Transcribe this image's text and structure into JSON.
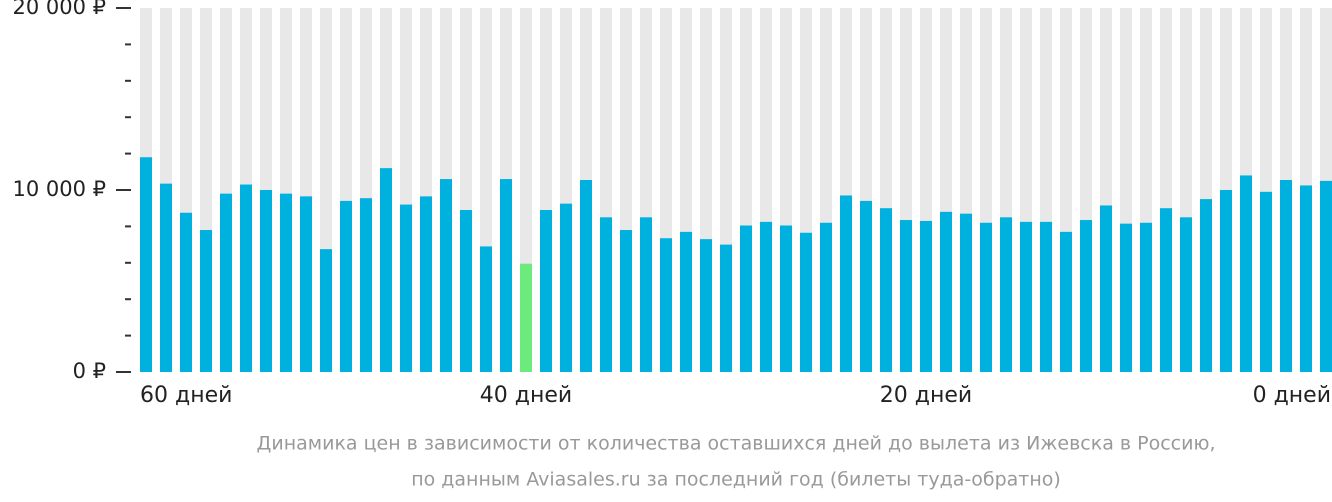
{
  "chart_data": {
    "type": "bar",
    "categories": [
      "60 дней",
      null,
      null,
      null,
      null,
      null,
      null,
      null,
      null,
      null,
      null,
      null,
      null,
      null,
      null,
      null,
      null,
      null,
      null,
      "40 дней",
      null,
      null,
      null,
      null,
      null,
      null,
      null,
      null,
      null,
      null,
      null,
      null,
      null,
      null,
      null,
      null,
      null,
      null,
      null,
      "20 дней",
      null,
      null,
      null,
      null,
      null,
      null,
      null,
      null,
      null,
      null,
      null,
      null,
      null,
      null,
      null,
      null,
      null,
      null,
      null,
      "0 дней"
    ],
    "values": [
      11800,
      10350,
      8750,
      7800,
      9800,
      10300,
      10000,
      9800,
      9650,
      6750,
      9400,
      9550,
      11200,
      9200,
      9650,
      10600,
      8900,
      6900,
      10600,
      5950,
      8900,
      9250,
      10550,
      8500,
      7800,
      8500,
      7350,
      7700,
      7300,
      7000,
      8050,
      8250,
      8050,
      7650,
      8200,
      9700,
      9400,
      9000,
      8350,
      8300,
      8800,
      8700,
      8200,
      8500,
      8250,
      8250,
      7700,
      8350,
      9150,
      8150,
      8200,
      9000,
      8500,
      9500,
      10000,
      10800,
      9900,
      10550,
      10250,
      10500
    ],
    "color": "#00b0de",
    "highlight_index": 19,
    "highlight_color": "#6ceb7c",
    "background_color": "#e8e8e8",
    "ylim": [
      0,
      20000
    ],
    "yticks": [
      {
        "value": 0,
        "label": "0 ₽"
      },
      {
        "value": 10000,
        "label": "10 000 ₽"
      },
      {
        "value": 20000,
        "label": "20 000 ₽"
      }
    ],
    "minor_yticks": [
      2000,
      4000,
      6000,
      8000,
      12000,
      14000,
      16000,
      18000
    ],
    "caption": [
      "Динамика цен в зависимости от количества оставшихся дней до вылета из Ижевска в Россию,",
      "по данным Aviasales.ru за последний год (билеты туда-обратно)"
    ]
  }
}
